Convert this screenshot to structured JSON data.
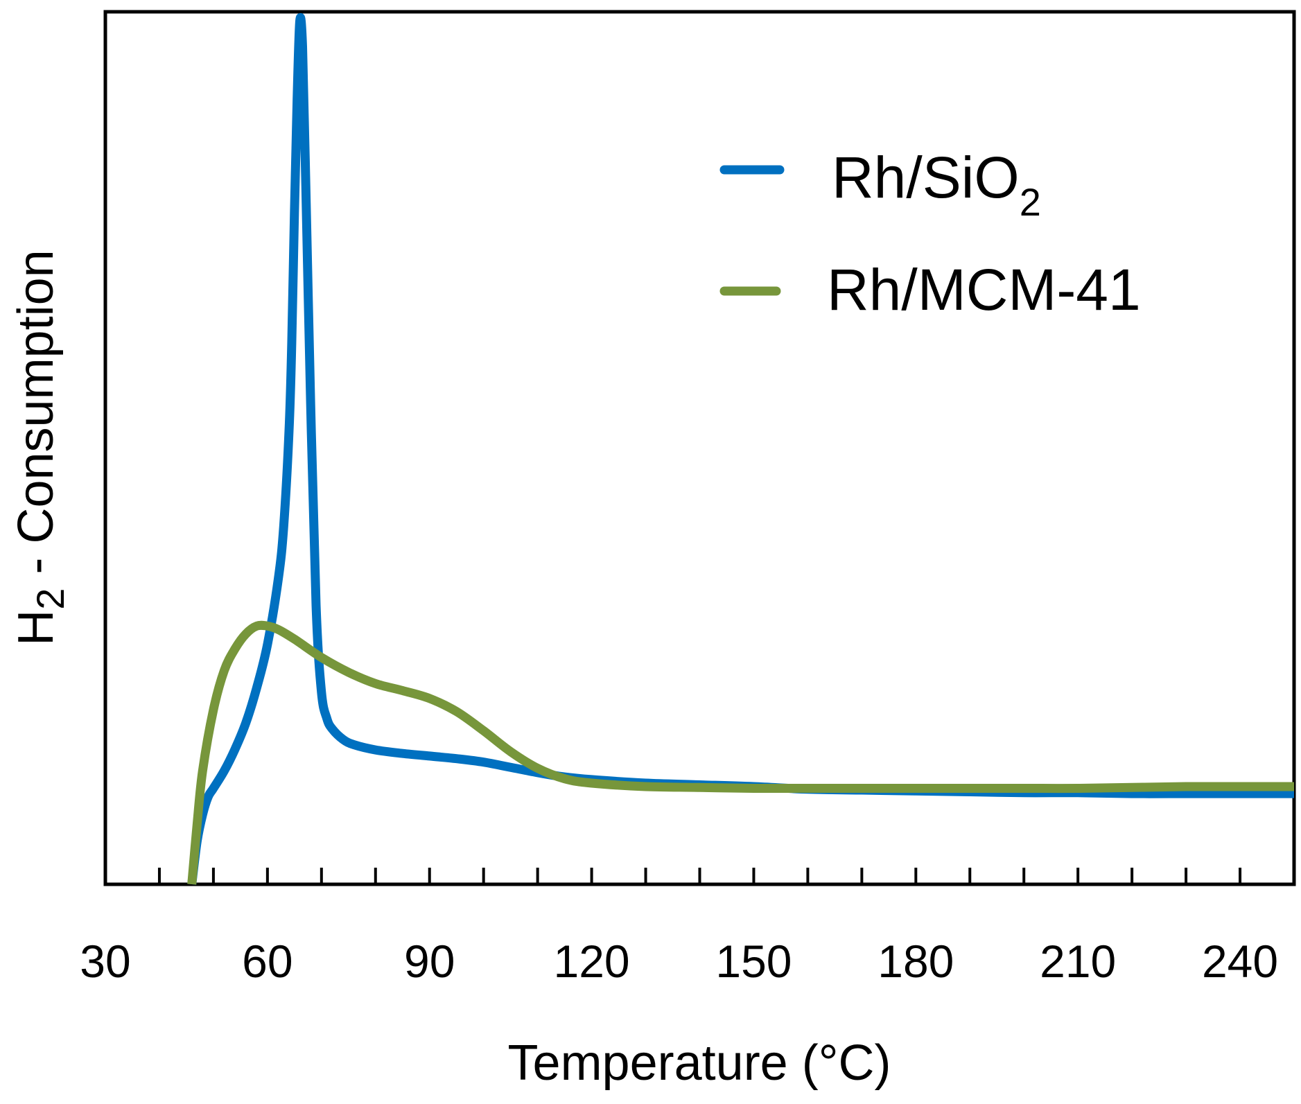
{
  "chart_data": {
    "type": "line",
    "xlabel": "Temperature (°C)",
    "ylabel": {
      "base": "H",
      "sub": "2",
      "rest": " - Consumption"
    },
    "xlim": [
      30,
      250
    ],
    "ylim": [
      0,
      100
    ],
    "xticks": [
      30,
      60,
      90,
      120,
      150,
      180,
      210,
      240
    ],
    "x_minor_step": 10,
    "y_tick_labels": false,
    "grid": false,
    "legend_position": "top-right",
    "series": [
      {
        "name": "Rh/SiO2",
        "legend_label": {
          "base": "Rh/SiO",
          "sub": "2"
        },
        "color": "#0070c0",
        "x": [
          46,
          47,
          48,
          49,
          50,
          52,
          54,
          56,
          58,
          60,
          62,
          63,
          64,
          64.5,
          65,
          65.5,
          66,
          66.5,
          67,
          68,
          69,
          70,
          71,
          72,
          74,
          76,
          80,
          85,
          90,
          95,
          100,
          105,
          110,
          115,
          120,
          130,
          140,
          150,
          160,
          170,
          180,
          190,
          200,
          210,
          220,
          230,
          240,
          250
        ],
        "y": [
          0,
          5,
          8,
          10,
          11,
          13,
          15.5,
          18.5,
          22.5,
          27.5,
          35,
          41,
          52,
          62,
          77,
          90,
          99,
          96,
          83,
          55,
          32,
          22,
          19,
          17.8,
          16.6,
          16,
          15.4,
          15,
          14.7,
          14.4,
          14,
          13.4,
          12.8,
          12.3,
          12,
          11.6,
          11.4,
          11.2,
          10.9,
          10.8,
          10.7,
          10.6,
          10.5,
          10.5,
          10.4,
          10.4,
          10.4,
          10.4
        ]
      },
      {
        "name": "Rh/MCM-41",
        "legend_label": {
          "base": "Rh/MCM-41",
          "sub": ""
        },
        "color": "#77963b",
        "x": [
          46,
          47,
          48,
          50,
          52,
          54,
          56,
          58,
          60,
          62,
          65,
          70,
          75,
          80,
          85,
          90,
          95,
          100,
          105,
          110,
          115,
          120,
          130,
          140,
          150,
          160,
          170,
          180,
          190,
          200,
          210,
          220,
          230,
          240,
          250
        ],
        "y": [
          0,
          7,
          13,
          20,
          24.5,
          27,
          28.7,
          29.6,
          29.6,
          29.2,
          28.1,
          26,
          24.3,
          23,
          22.2,
          21.3,
          19.8,
          17.6,
          15.2,
          13.3,
          12.1,
          11.6,
          11.2,
          11.1,
          11,
          11,
          11,
          11,
          11,
          11,
          11,
          11.1,
          11.2,
          11.2,
          11.2
        ]
      }
    ]
  }
}
